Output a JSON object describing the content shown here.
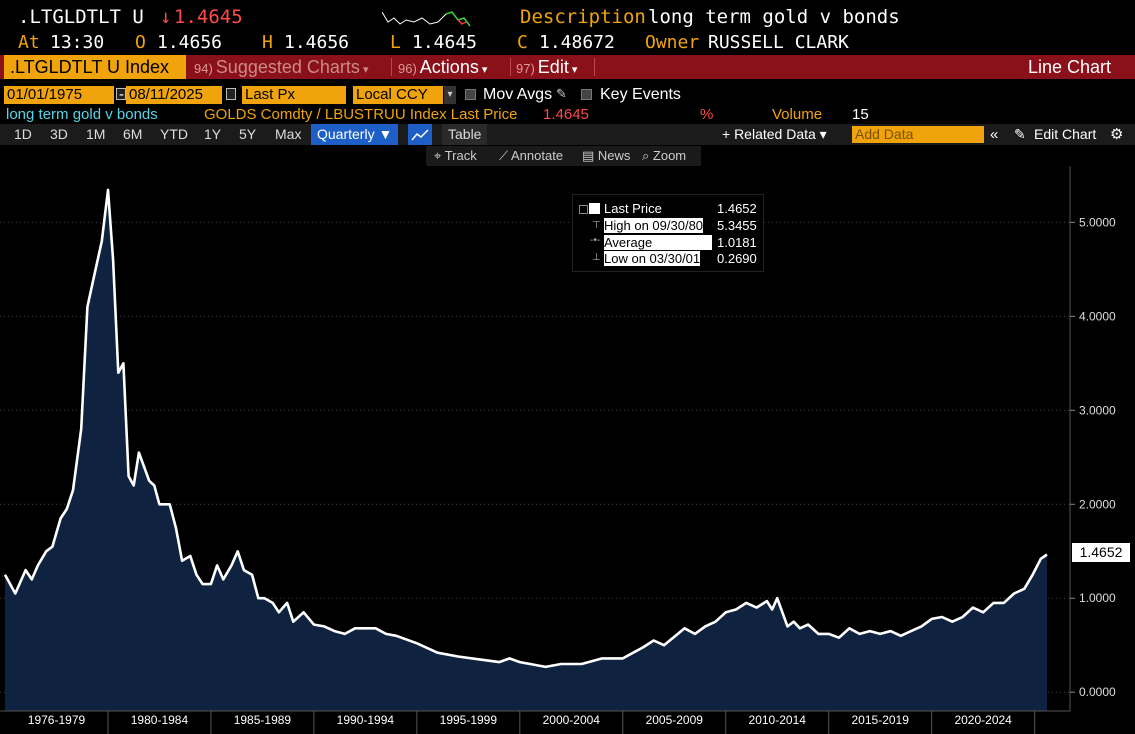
{
  "header": {
    "ticker": ".LTGLDTLT U",
    "last_arrow": "↓",
    "last_value": "1.4645",
    "description_label": "Description",
    "description": "long term gold v bonds",
    "at_label": "At",
    "at_time": "13:30",
    "open_label": "O",
    "open": "1.4656",
    "high_label": "H",
    "high": "1.4656",
    "low_label": "L",
    "low": "1.4645",
    "close_label": "C",
    "close": "1.48672",
    "owner_label": "Owner",
    "owner": "RUSSELL CLARK"
  },
  "menubar": {
    "index_tab": ".LTGLDTLT U Index",
    "suggested_num": "94)",
    "suggested": "Suggested Charts",
    "actions_num": "96)",
    "actions": "Actions",
    "edit_num": "97)",
    "edit": "Edit",
    "chart_type": "Line Chart"
  },
  "controls": {
    "start_date": "01/01/1975",
    "dash": "-",
    "end_date": "08/11/2025",
    "field": "Last Px",
    "currency": "Local CCY",
    "mov_avgs": "Mov Avgs",
    "key_events": "Key Events"
  },
  "series_info": {
    "name": "long term gold v bonds",
    "formula": "GOLDS Comdty / LBUSTRUU Index Last Price",
    "value": "1.4645",
    "percent": "%",
    "volume_label": "Volume",
    "volume": "15"
  },
  "toolbar": {
    "periods": [
      "1D",
      "3D",
      "1M",
      "6M",
      "YTD",
      "1Y",
      "5Y",
      "Max"
    ],
    "frequency": "Quarterly ▼",
    "table": "Table",
    "related_data": "+ Related Data ▾",
    "add_data_placeholder": "Add Data",
    "edit_chart": "Edit Chart"
  },
  "subtoolbar": {
    "track": "Track",
    "annotate": "Annotate",
    "news": "News",
    "zoom": "Zoom"
  },
  "legend": {
    "last_label": "Last Price",
    "last_value": "1.4652",
    "high_label": "High on 09/30/80",
    "high_value": "5.3455",
    "avg_label": "Average",
    "avg_value": "1.0181",
    "low_label": "Low on 03/30/01",
    "low_value": "0.2690"
  },
  "last_tag": "1.4652",
  "colors": {
    "amber": "#f0a30a",
    "menubar": "#8a111a",
    "area_fill": "#0f2340",
    "line": "#ffffff"
  },
  "chart_data": {
    "type": "area",
    "ylim": [
      -0.2,
      5.6
    ],
    "yticks": [
      "0.0000",
      "1.0000",
      "2.0000",
      "3.0000",
      "4.0000",
      "5.0000"
    ],
    "ytick_values": [
      0,
      1,
      2,
      3,
      4,
      5
    ],
    "x_range": [
      1975.0,
      2025.6
    ],
    "x_groups": [
      "1976-1979",
      "1980-1984",
      "1985-1989",
      "1990-1994",
      "1995-1999",
      "2000-2004",
      "2005-2009",
      "2010-2014",
      "2015-2019",
      "2020-2024"
    ],
    "x_group_bounds": [
      [
        1975.0,
        1980.0
      ],
      [
        1980.0,
        1985.0
      ],
      [
        1985.0,
        1990.0
      ],
      [
        1990.0,
        1995.0
      ],
      [
        1995.0,
        2000.0
      ],
      [
        2000.0,
        2005.0
      ],
      [
        2005.0,
        2010.0
      ],
      [
        2010.0,
        2015.0
      ],
      [
        2015.0,
        2020.0
      ],
      [
        2020.0,
        2025.0
      ]
    ],
    "x": [
      1975.0,
      1975.5,
      1976.0,
      1976.3,
      1976.6,
      1977.0,
      1977.3,
      1977.7,
      1978.0,
      1978.3,
      1978.7,
      1979.0,
      1979.3,
      1979.7,
      1980.0,
      1980.25,
      1980.5,
      1980.75,
      1981.0,
      1981.25,
      1981.5,
      1982.0,
      1982.25,
      1982.5,
      1983.0,
      1983.3,
      1983.6,
      1984.0,
      1984.3,
      1984.6,
      1985.0,
      1985.3,
      1985.6,
      1986.0,
      1986.3,
      1986.6,
      1987.0,
      1987.3,
      1987.6,
      1988.0,
      1988.3,
      1988.7,
      1989.0,
      1989.5,
      1990.0,
      1990.5,
      1991.0,
      1991.5,
      1992.0,
      1993.0,
      1993.5,
      1994.0,
      1995.0,
      1996.0,
      1997.0,
      1998.0,
      1999.0,
      1999.5,
      2000.0,
      2000.5,
      2001.25,
      2002.0,
      2003.0,
      2004.0,
      2005.0,
      2006.0,
      2006.5,
      2007.0,
      2008.0,
      2008.5,
      2009.0,
      2009.5,
      2010.0,
      2010.5,
      2011.0,
      2011.5,
      2012.0,
      2012.25,
      2012.5,
      2013.0,
      2013.3,
      2013.6,
      2014.0,
      2014.5,
      2015.0,
      2015.5,
      2016.0,
      2016.5,
      2017.0,
      2017.5,
      2018.0,
      2018.5,
      2019.0,
      2019.5,
      2020.0,
      2020.5,
      2021.0,
      2021.5,
      2022.0,
      2022.5,
      2023.0,
      2023.5,
      2024.0,
      2024.5,
      2024.9,
      2025.3,
      2025.6
    ],
    "values": [
      1.25,
      1.05,
      1.3,
      1.2,
      1.35,
      1.5,
      1.55,
      1.85,
      1.95,
      2.15,
      2.8,
      4.1,
      4.4,
      4.8,
      5.3455,
      4.6,
      3.4,
      3.5,
      2.3,
      2.2,
      2.55,
      2.25,
      2.2,
      2.0,
      2.0,
      1.75,
      1.4,
      1.45,
      1.25,
      1.15,
      1.15,
      1.35,
      1.2,
      1.35,
      1.5,
      1.3,
      1.25,
      1.0,
      1.0,
      0.95,
      0.85,
      0.95,
      0.75,
      0.85,
      0.72,
      0.7,
      0.65,
      0.62,
      0.68,
      0.68,
      0.62,
      0.6,
      0.52,
      0.42,
      0.38,
      0.35,
      0.32,
      0.36,
      0.32,
      0.3,
      0.269,
      0.3,
      0.3,
      0.36,
      0.36,
      0.48,
      0.55,
      0.5,
      0.68,
      0.62,
      0.7,
      0.75,
      0.85,
      0.88,
      0.95,
      0.9,
      0.97,
      0.88,
      1.0,
      0.7,
      0.75,
      0.68,
      0.72,
      0.62,
      0.62,
      0.58,
      0.68,
      0.62,
      0.65,
      0.62,
      0.65,
      0.6,
      0.65,
      0.7,
      0.78,
      0.8,
      0.75,
      0.8,
      0.9,
      0.85,
      0.95,
      0.95,
      1.05,
      1.1,
      1.25,
      1.42,
      1.4652
    ]
  }
}
